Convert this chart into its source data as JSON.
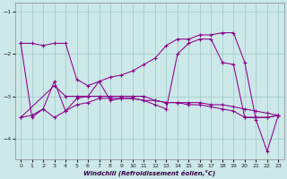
{
  "background_color": "#cce8e8",
  "line_color": "#8b008b",
  "grid_color": "#9ec8c8",
  "xlabel": "Windchill (Refroidissement éolien,°C)",
  "xlim": [
    -0.5,
    23.5
  ],
  "ylim": [
    -4.5,
    -0.8
  ],
  "yticks": [
    -4,
    -3,
    -2,
    -1
  ],
  "xticks": [
    0,
    1,
    2,
    3,
    4,
    5,
    6,
    7,
    8,
    9,
    10,
    11,
    12,
    13,
    14,
    15,
    16,
    17,
    18,
    19,
    20,
    21,
    22,
    23
  ],
  "line1_x": [
    0,
    1,
    2,
    3,
    4,
    5,
    6,
    7,
    8,
    9,
    10,
    11,
    12,
    13,
    14,
    15,
    16,
    17,
    18,
    19,
    20,
    21,
    22,
    23
  ],
  "line1_y": [
    -1.75,
    -3.5,
    -3.3,
    -3.5,
    -3.35,
    -3.2,
    -3.15,
    -3.05,
    -3.05,
    -3.05,
    -3.05,
    -3.1,
    -3.1,
    -3.15,
    -3.15,
    -3.2,
    -3.2,
    -3.25,
    -3.3,
    -3.35,
    -3.5,
    -3.5,
    -3.5,
    -3.45
  ],
  "line2_x": [
    0,
    1,
    2,
    3,
    4,
    5,
    6,
    7,
    8,
    9,
    10,
    11,
    12,
    13,
    14,
    15,
    16,
    17,
    18,
    19,
    20,
    21,
    22,
    23
  ],
  "line2_y": [
    -3.5,
    -3.45,
    -3.3,
    -2.65,
    -3.35,
    -3.05,
    -3.0,
    -2.65,
    -3.1,
    -3.05,
    -3.05,
    -3.1,
    -3.2,
    -3.3,
    -2.0,
    -1.75,
    -1.65,
    -1.65,
    -2.2,
    -2.25,
    -3.5,
    -3.5,
    -3.5,
    -3.45
  ],
  "line3_x": [
    0,
    3,
    4,
    5,
    6,
    7,
    8,
    9,
    10,
    11,
    12,
    13,
    14,
    15,
    16,
    17,
    18,
    19,
    20,
    21,
    22,
    23
  ],
  "line3_y": [
    -3.5,
    -2.75,
    -3.0,
    -3.0,
    -3.0,
    -3.0,
    -3.0,
    -3.0,
    -3.0,
    -3.0,
    -3.1,
    -3.15,
    -3.15,
    -3.15,
    -3.15,
    -3.2,
    -3.2,
    -3.25,
    -3.3,
    -3.35,
    -3.4,
    -3.45
  ],
  "line4_x": [
    0,
    1,
    2,
    3,
    4,
    5,
    6,
    7,
    8,
    9,
    10,
    11,
    12,
    13,
    14,
    15,
    16,
    17,
    18,
    19,
    20,
    21,
    22,
    23
  ],
  "line4_y": [
    -1.75,
    -1.75,
    -1.8,
    -1.75,
    -1.75,
    -2.6,
    -2.75,
    -2.65,
    -2.55,
    -2.5,
    -2.4,
    -2.25,
    -2.1,
    -1.8,
    -1.65,
    -1.65,
    -1.55,
    -1.55,
    -1.5,
    -1.5,
    -2.2,
    -3.55,
    -4.3,
    -3.45
  ]
}
